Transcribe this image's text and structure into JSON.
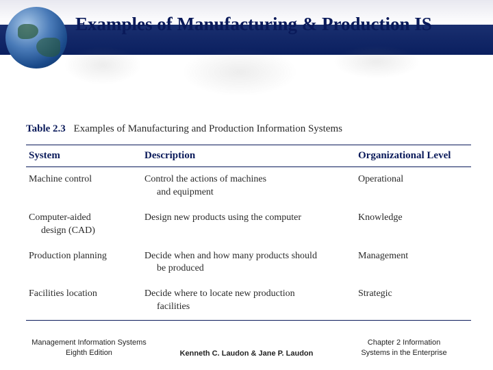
{
  "colors": {
    "brand_blue": "#0a1a5a",
    "band_dark": "#0a1f5f",
    "text_body": "#2a2a2a",
    "background": "#ffffff"
  },
  "typography": {
    "title_fontsize_pt": 20,
    "table_header_fontsize_pt": 11,
    "table_body_fontsize_pt": 10.5,
    "footer_fontsize_pt": 8,
    "title_family": "Times New Roman",
    "body_family": "Georgia",
    "footer_family": "Arial"
  },
  "title": "Examples of Manufacturing & Production IS",
  "table": {
    "label": "Table 2.3",
    "caption": "Examples of Manufacturing and Production Information Systems",
    "columns": [
      "System",
      "Description",
      "Organizational Level"
    ],
    "column_widths_pct": [
      26,
      48,
      26
    ],
    "rows": [
      {
        "system": "Machine control",
        "system_line2": "",
        "description": "Control the actions of machines",
        "description_line2": "and equipment",
        "level": "Operational"
      },
      {
        "system": "Computer-aided",
        "system_line2": "design (CAD)",
        "description": "Design new products using the computer",
        "description_line2": "",
        "level": "Knowledge"
      },
      {
        "system": "Production planning",
        "system_line2": "",
        "description": "Decide when and how many products should",
        "description_line2": "be produced",
        "level": "Management"
      },
      {
        "system": "Facilities location",
        "system_line2": "",
        "description": "Decide where to locate new production",
        "description_line2": "facilities",
        "level": "Strategic"
      }
    ]
  },
  "footer": {
    "left_line1": "Management Information Systems",
    "left_line2": "Eighth Edition",
    "center": "Kenneth C. Laudon & Jane P. Laudon",
    "right_line1": "Chapter 2 Information",
    "right_line2": "Systems in the Enterprise"
  }
}
